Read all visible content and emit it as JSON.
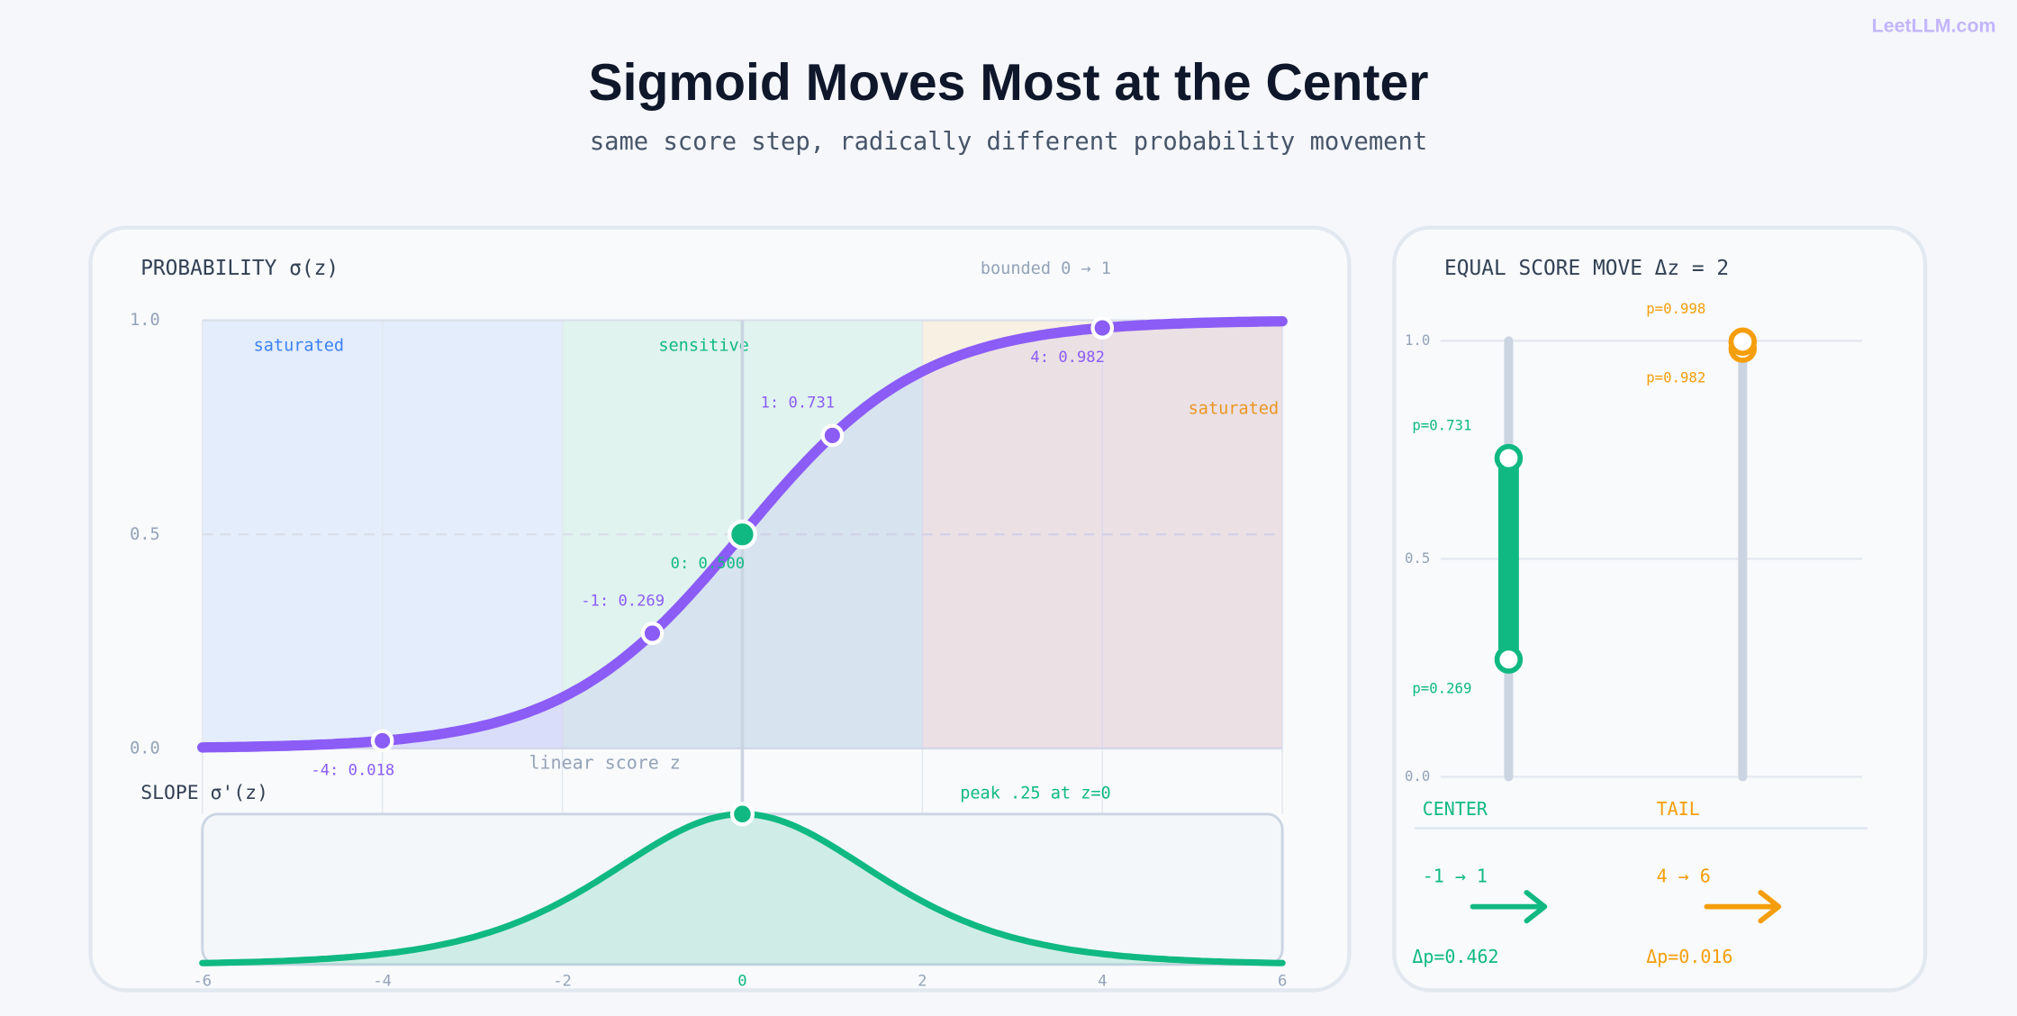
{
  "brand": "LeetLLM.com",
  "title": "Sigmoid Moves Most at the Center",
  "subtitle": "same score step, radically different probability movement",
  "chart_data": [
    {
      "type": "line",
      "title": "PROBABILITY σ(z)",
      "subtitle": "bounded 0 → 1",
      "xlabel": "linear score z",
      "x": [
        -4,
        -1,
        0,
        1,
        4
      ],
      "values": [
        0.018,
        0.269,
        0.5,
        0.731,
        0.982
      ],
      "value_labels": [
        "-4: 0.018",
        "-1: 0.269",
        "0: 0.500",
        "1: 0.731",
        "4: 0.982"
      ],
      "color": "#8b5cf6",
      "highlight_color": "#10b981",
      "xlim": [
        -6,
        6
      ],
      "xticks": [
        -6,
        -4,
        -2,
        0,
        2,
        4,
        6
      ],
      "ylim": [
        0,
        1
      ],
      "yticks": [
        {
          "value": 0,
          "label": "0.0"
        },
        {
          "value": 0.5,
          "label": "0.5"
        },
        {
          "value": 1,
          "label": "1.0"
        }
      ],
      "grid": true,
      "regions": [
        {
          "label": "saturated",
          "from": -6,
          "to": -2,
          "color": "#3b82f6"
        },
        {
          "label": "sensitive",
          "from": -2,
          "to": 2,
          "color": "#10b981"
        },
        {
          "label": "saturated",
          "from": 2,
          "to": 6,
          "color": "#f59e0b"
        }
      ]
    },
    {
      "type": "area",
      "title": "SLOPE σ'(z)",
      "annotation": "peak .25 at z=0",
      "x": [
        0
      ],
      "values": [
        0.25
      ],
      "color": "#10b981",
      "xlim": [
        -6,
        6
      ],
      "ylim": [
        0,
        0.25
      ]
    },
    {
      "type": "range",
      "title": "EQUAL SCORE MOVE Δz = 2",
      "categories": [
        "CENTER",
        "TAIL"
      ],
      "colors": [
        "#10b981",
        "#f59e0b"
      ],
      "low": [
        0.269,
        0.982
      ],
      "high": [
        0.731,
        0.998
      ],
      "low_labels": [
        "p=0.269",
        "p=0.982"
      ],
      "high_labels": [
        "p=0.731",
        "p=0.998"
      ],
      "moves": [
        "-1 → 1",
        "4 → 6"
      ],
      "delta_labels": [
        "Δp=0.462",
        "Δp=0.016"
      ],
      "ylim": [
        0,
        1
      ],
      "yticks": [
        {
          "value": 0,
          "label": "0.0"
        },
        {
          "value": 0.5,
          "label": "0.5"
        },
        {
          "value": 1,
          "label": "1.0"
        }
      ],
      "grid": true
    }
  ]
}
